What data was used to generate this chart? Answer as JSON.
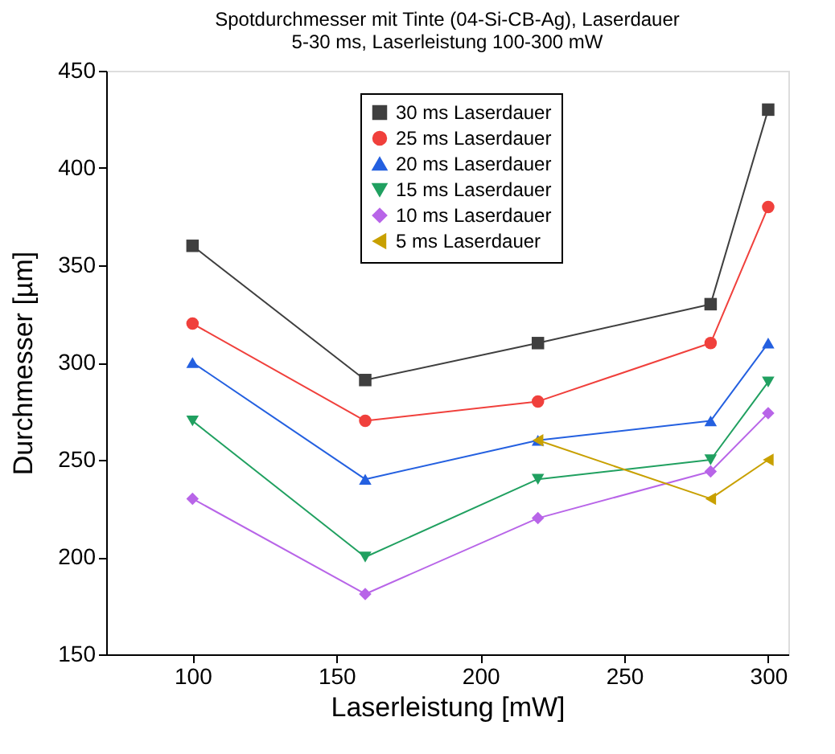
{
  "chart_data": {
    "type": "line",
    "title": "Spotdurchmesser mit Tinte (04-Si-CB-Ag), Laserdauer\n5-30 ms, Laserleistung 100-300 mW",
    "xlabel": "Laserleistung [mW]",
    "ylabel": "Durchmesser [µm]",
    "x": [
      100,
      160,
      220,
      280,
      300
    ],
    "series": [
      {
        "name": "30 ms Laserdauer",
        "color": "#3f3f3f",
        "marker": "square",
        "values": [
          360,
          291,
          310,
          330,
          430
        ]
      },
      {
        "name": "25 ms Laserdauer",
        "color": "#f0403c",
        "marker": "circle",
        "values": [
          320,
          270,
          280,
          310,
          380
        ]
      },
      {
        "name": "20 ms Laserdauer",
        "color": "#2460e0",
        "marker": "triangle",
        "values": [
          300,
          240,
          260,
          270,
          310
        ]
      },
      {
        "name": "15 ms Laserdauer",
        "color": "#20a060",
        "marker": "triangle-down",
        "values": [
          270,
          200,
          240,
          250,
          290
        ]
      },
      {
        "name": "10 ms Laserdauer",
        "color": "#b865e8",
        "marker": "diamond",
        "values": [
          230,
          181,
          220,
          244,
          274
        ]
      },
      {
        "name": " 5 ms Laserdauer",
        "color": "#c8a000",
        "marker": "triangle-left",
        "x": [
          220,
          280,
          300
        ],
        "values": [
          260,
          230,
          250
        ]
      }
    ],
    "xlim": [
      70,
      307
    ],
    "xticks": [
      100,
      150,
      200,
      250,
      300
    ],
    "ylim": [
      150,
      450
    ],
    "yticks": [
      150,
      200,
      250,
      300,
      350,
      400,
      450
    ],
    "grid": false,
    "legend": "top",
    "line_style": "solid"
  }
}
